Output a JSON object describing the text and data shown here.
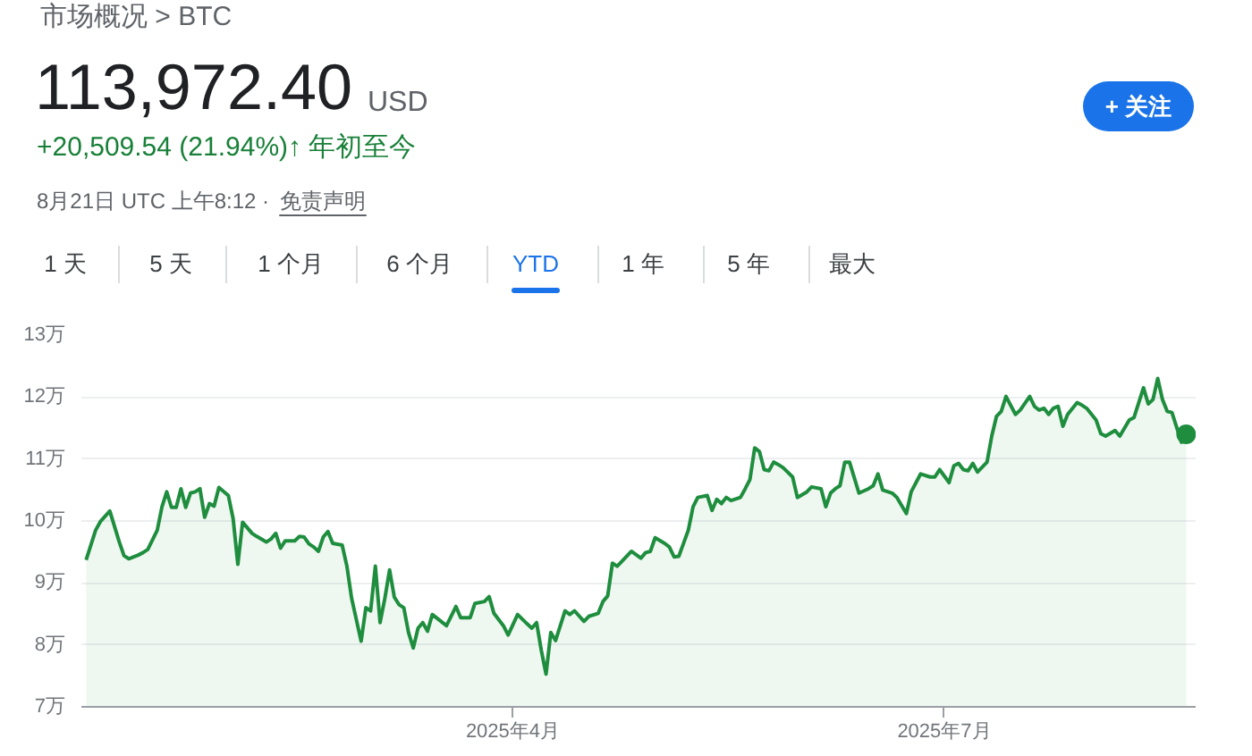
{
  "chart_data": [
    {
      "type": "other",
      "annotations": [
        "市场概况 > BTC",
        "113,972.40",
        "USD",
        "+20,509.54 (21.94%)↑ 年初至今",
        "8月21日 UTC 上午8:12 ·",
        "免责声明",
        "+ 关注",
        "1 天",
        "5 天",
        "1 个月",
        "6 个月",
        "YTD",
        "1 年",
        "5 年",
        "最大"
      ]
    },
    {
      "type": "area",
      "x": [
        "2025-01-01",
        "2025-01-03",
        "2025-01-04",
        "2025-01-06",
        "2025-01-08",
        "2025-01-09",
        "2025-01-10",
        "2025-01-12",
        "2025-01-13",
        "2025-01-14",
        "2025-01-16",
        "2025-01-17",
        "2025-01-18",
        "2025-01-19",
        "2025-01-20",
        "2025-01-21",
        "2025-01-22",
        "2025-01-23",
        "2025-01-24",
        "2025-01-25",
        "2025-01-26",
        "2025-01-27",
        "2025-01-28",
        "2025-01-29",
        "2025-01-31",
        "2025-02-01",
        "2025-02-02",
        "2025-02-03",
        "2025-02-05",
        "2025-02-06",
        "2025-02-08",
        "2025-02-09",
        "2025-02-10",
        "2025-02-11",
        "2025-02-12",
        "2025-02-14",
        "2025-02-15",
        "2025-02-16",
        "2025-02-17",
        "2025-02-18",
        "2025-02-19",
        "2025-02-20",
        "2025-02-21",
        "2025-02-22",
        "2025-02-24",
        "2025-02-25",
        "2025-02-26",
        "2025-02-28",
        "2025-03-01",
        "2025-03-02",
        "2025-03-03",
        "2025-03-04",
        "2025-03-05",
        "2025-03-06",
        "2025-03-07",
        "2025-03-08",
        "2025-03-09",
        "2025-03-10",
        "2025-03-11",
        "2025-03-12",
        "2025-03-13",
        "2025-03-14",
        "2025-03-15",
        "2025-03-18",
        "2025-03-20",
        "2025-03-21",
        "2025-03-23",
        "2025-03-24",
        "2025-03-26",
        "2025-03-27",
        "2025-03-28",
        "2025-03-30",
        "2025-03-31",
        "2025-04-02",
        "2025-04-04",
        "2025-04-05",
        "2025-04-06",
        "2025-04-07",
        "2025-04-08",
        "2025-04-09",
        "2025-04-10",
        "2025-04-12",
        "2025-04-13",
        "2025-04-14",
        "2025-04-16",
        "2025-04-17",
        "2025-04-19",
        "2025-04-20",
        "2025-04-21",
        "2025-04-22",
        "2025-04-23",
        "2025-04-24",
        "2025-04-26",
        "2025-04-28",
        "2025-04-29",
        "2025-04-30",
        "2025-05-01",
        "2025-05-03",
        "2025-05-04",
        "2025-05-05",
        "2025-05-06",
        "2025-05-08",
        "2025-05-09",
        "2025-05-10",
        "2025-05-12",
        "2025-05-13",
        "2025-05-14",
        "2025-05-15",
        "2025-05-16",
        "2025-05-17",
        "2025-05-19",
        "2025-05-20",
        "2025-05-21",
        "2025-05-22",
        "2025-05-23",
        "2025-05-24",
        "2025-05-25",
        "2025-05-26",
        "2025-05-27",
        "2025-05-28",
        "2025-05-30",
        "2025-05-31",
        "2025-06-02",
        "2025-06-03",
        "2025-06-05",
        "2025-06-06",
        "2025-06-07",
        "2025-06-08",
        "2025-06-09",
        "2025-06-10",
        "2025-06-11",
        "2025-06-13",
        "2025-06-15",
        "2025-06-16",
        "2025-06-17",
        "2025-06-18",
        "2025-06-20",
        "2025-06-21",
        "2025-06-23",
        "2025-06-24",
        "2025-06-26",
        "2025-06-28",
        "2025-06-29",
        "2025-06-30",
        "2025-07-02",
        "2025-07-03",
        "2025-07-04",
        "2025-07-05",
        "2025-07-06",
        "2025-07-07",
        "2025-07-08",
        "2025-07-10",
        "2025-07-11",
        "2025-07-12",
        "2025-07-13",
        "2025-07-14",
        "2025-07-16",
        "2025-07-17",
        "2025-07-19",
        "2025-07-20",
        "2025-07-21",
        "2025-07-22",
        "2025-07-23",
        "2025-07-24",
        "2025-07-25",
        "2025-07-26",
        "2025-07-27",
        "2025-07-29",
        "2025-07-30",
        "2025-07-31",
        "2025-08-02",
        "2025-08-03",
        "2025-08-04",
        "2025-08-06",
        "2025-08-07",
        "2025-08-09",
        "2025-08-10",
        "2025-08-12",
        "2025-08-13",
        "2025-08-14",
        "2025-08-15",
        "2025-08-16",
        "2025-08-17",
        "2025-08-18",
        "2025-08-20",
        "2025-08-21"
      ],
      "series": [
        {
          "color": "#1e8e3e",
          "values": [
            9.37,
            9.85,
            9.99,
            10.16,
            9.66,
            9.44,
            9.39,
            9.45,
            9.49,
            9.54,
            9.85,
            10.23,
            10.47,
            10.22,
            10.22,
            10.52,
            10.22,
            10.45,
            10.47,
            10.52,
            10.06,
            10.28,
            10.24,
            10.54,
            10.41,
            10.04,
            9.3,
            9.98,
            9.8,
            9.75,
            9.66,
            9.71,
            9.8,
            9.56,
            9.68,
            9.68,
            9.75,
            9.74,
            9.63,
            9.58,
            9.51,
            9.74,
            9.83,
            9.64,
            9.61,
            9.27,
            8.75,
            8.06,
            8.6,
            8.55,
            9.27,
            8.36,
            8.75,
            9.21,
            8.77,
            8.65,
            8.6,
            8.2,
            7.95,
            8.27,
            8.36,
            8.22,
            8.49,
            8.31,
            8.62,
            8.44,
            8.44,
            8.67,
            8.7,
            8.78,
            8.51,
            8.31,
            8.16,
            8.49,
            8.34,
            8.27,
            8.36,
            7.91,
            7.53,
            8.2,
            8.07,
            8.55,
            8.49,
            8.55,
            8.38,
            8.46,
            8.51,
            8.7,
            8.79,
            9.32,
            9.27,
            9.35,
            9.51,
            9.4,
            9.49,
            9.51,
            9.73,
            9.64,
            9.58,
            9.42,
            9.43,
            9.85,
            10.23,
            10.38,
            10.41,
            10.17,
            10.35,
            10.28,
            10.38,
            10.33,
            10.38,
            10.52,
            10.67,
            11.18,
            11.12,
            10.83,
            10.81,
            10.95,
            10.91,
            10.86,
            10.71,
            10.38,
            10.47,
            10.55,
            10.52,
            10.23,
            10.45,
            10.52,
            10.57,
            10.95,
            10.95,
            10.45,
            10.52,
            10.57,
            10.76,
            10.5,
            10.45,
            10.38,
            10.12,
            10.47,
            10.76,
            10.71,
            10.71,
            10.83,
            10.62,
            10.89,
            10.93,
            10.83,
            10.81,
            10.93,
            10.79,
            10.95,
            11.37,
            11.69,
            11.77,
            12.01,
            11.72,
            11.79,
            12.01,
            11.85,
            11.79,
            11.82,
            11.72,
            11.82,
            11.85,
            11.53,
            11.72,
            11.91,
            11.87,
            11.82,
            11.63,
            11.41,
            11.37,
            11.46,
            11.37,
            11.63,
            11.67,
            12.15,
            11.89,
            11.96,
            12.3,
            11.96,
            11.77,
            11.75,
            11.27,
            11.4
          ]
        },
        {
          "type": "scatter",
          "color": "#1e8e3e",
          "x": [
            "2025-08-21"
          ],
          "values": [
            11.4
          ]
        }
      ],
      "xlim": [
        "2024-12-31",
        "2025-08-23"
      ],
      "xticks": [
        {
          "value": "2025-04-01",
          "label": "2025年4月"
        },
        {
          "value": "2025-07-01",
          "label": "2025年7月"
        }
      ],
      "ylim": [
        7,
        13
      ],
      "yticks": [
        {
          "value": 7,
          "label": "7万"
        },
        {
          "value": 8,
          "label": "8万"
        },
        {
          "value": 9,
          "label": "9万"
        },
        {
          "value": 10,
          "label": "10万"
        },
        {
          "value": 11,
          "label": "11万"
        },
        {
          "value": 12,
          "label": "12万"
        },
        {
          "value": 13,
          "label": "13万"
        }
      ],
      "grid": "y"
    }
  ]
}
